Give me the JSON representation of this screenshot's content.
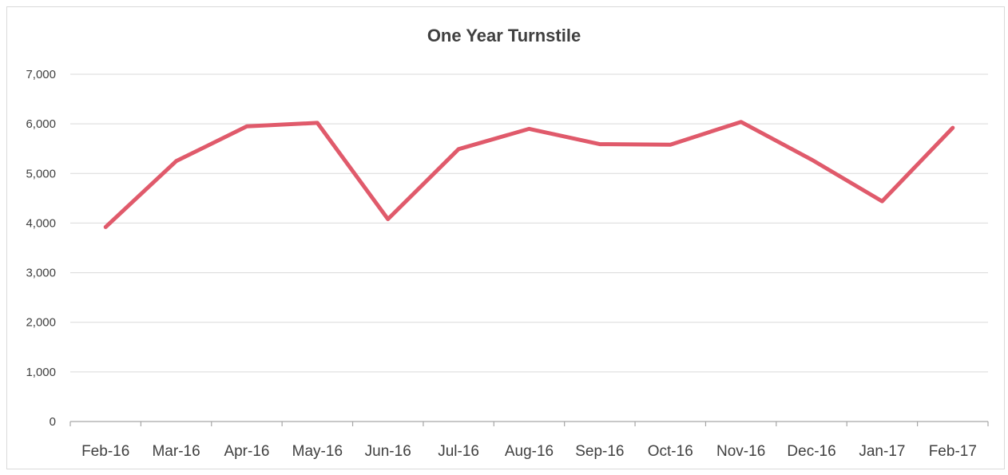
{
  "chart_data": {
    "type": "line",
    "title": "One Year Turnstile",
    "xlabel": "",
    "ylabel": "",
    "categories": [
      "Feb-16",
      "Mar-16",
      "Apr-16",
      "May-16",
      "Jun-16",
      "Jul-16",
      "Aug-16",
      "Sep-16",
      "Oct-16",
      "Nov-16",
      "Dec-16",
      "Jan-17",
      "Feb-17"
    ],
    "series": [
      {
        "values": [
          3920,
          5250,
          5950,
          6020,
          4080,
          5490,
          5900,
          5590,
          5580,
          6040,
          5280,
          4440,
          5920
        ],
        "color": "#e05a6b"
      }
    ],
    "ylim": [
      0,
      7000
    ],
    "yticks": [
      0,
      1000,
      2000,
      3000,
      4000,
      5000,
      6000,
      7000
    ],
    "ytick_labels": [
      "0",
      "1,000",
      "2,000",
      "3,000",
      "4,000",
      "5,000",
      "6,000",
      "7,000"
    ],
    "grid": true,
    "legend": "none"
  }
}
